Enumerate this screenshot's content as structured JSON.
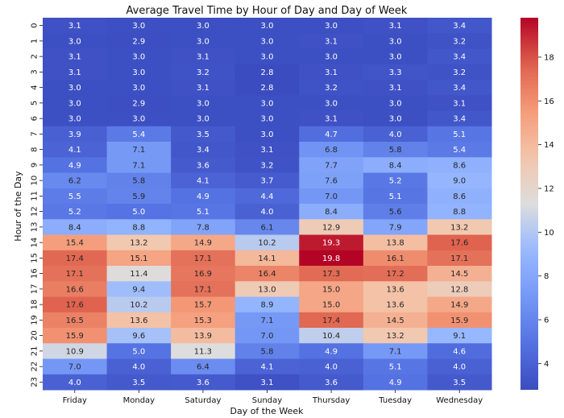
{
  "chart_data": {
    "type": "heatmap",
    "title": "Average Travel Time by Hour of Day and Day of Week",
    "xlabel": "Day of the Week",
    "ylabel": "Hour of the Day",
    "x_categories": [
      "Friday",
      "Monday",
      "Saturday",
      "Sunday",
      "Thursday",
      "Tuesday",
      "Wednesday"
    ],
    "y_categories": [
      "0",
      "1",
      "2",
      "3",
      "4",
      "5",
      "6",
      "7",
      "8",
      "9",
      "10",
      "11",
      "12",
      "13",
      "14",
      "15",
      "16",
      "17",
      "18",
      "19",
      "20",
      "21",
      "22",
      "23"
    ],
    "values": [
      [
        3.1,
        3.0,
        3.0,
        3.0,
        3.0,
        3.1,
        3.4
      ],
      [
        3.0,
        2.9,
        3.0,
        3.0,
        3.1,
        3.0,
        3.2
      ],
      [
        3.1,
        3.0,
        3.1,
        3.0,
        3.0,
        3.0,
        3.4
      ],
      [
        3.1,
        3.0,
        3.2,
        2.8,
        3.1,
        3.3,
        3.2
      ],
      [
        3.0,
        3.0,
        3.1,
        2.8,
        3.2,
        3.1,
        3.4
      ],
      [
        3.0,
        2.9,
        3.0,
        3.0,
        3.0,
        3.0,
        3.1
      ],
      [
        3.0,
        3.0,
        3.0,
        3.0,
        3.1,
        3.0,
        3.4
      ],
      [
        3.9,
        5.4,
        3.5,
        3.0,
        4.7,
        4.0,
        5.1
      ],
      [
        4.1,
        7.1,
        3.4,
        3.1,
        6.8,
        5.8,
        5.4
      ],
      [
        4.9,
        7.1,
        3.6,
        3.2,
        7.7,
        8.4,
        8.6
      ],
      [
        6.2,
        5.8,
        4.1,
        3.7,
        7.6,
        5.2,
        9.0
      ],
      [
        5.5,
        5.9,
        4.9,
        4.4,
        7.0,
        5.1,
        8.6
      ],
      [
        5.2,
        5.0,
        5.1,
        4.0,
        8.4,
        5.6,
        8.8
      ],
      [
        8.4,
        8.8,
        7.8,
        6.1,
        12.9,
        7.9,
        13.2
      ],
      [
        15.4,
        13.2,
        14.9,
        10.2,
        19.3,
        13.8,
        17.6
      ],
      [
        17.4,
        15.1,
        17.1,
        14.1,
        19.8,
        16.1,
        17.1
      ],
      [
        17.1,
        11.4,
        16.9,
        16.4,
        17.3,
        17.2,
        14.5
      ],
      [
        16.6,
        9.4,
        17.1,
        13.0,
        15.0,
        13.6,
        12.8
      ],
      [
        17.6,
        10.2,
        15.7,
        8.9,
        15.0,
        13.6,
        14.9
      ],
      [
        16.5,
        13.6,
        15.3,
        7.1,
        17.4,
        14.5,
        15.9
      ],
      [
        15.9,
        9.6,
        13.9,
        7.0,
        10.4,
        13.2,
        9.1
      ],
      [
        10.9,
        5.0,
        11.3,
        5.8,
        4.9,
        7.1,
        4.6
      ],
      [
        7.0,
        4.0,
        6.4,
        4.1,
        4.0,
        5.1,
        4.0
      ],
      [
        4.0,
        3.5,
        3.6,
        3.1,
        3.6,
        4.9,
        3.5
      ]
    ],
    "colormap": "coolwarm",
    "vmin": 2.8,
    "vmax": 19.8,
    "colorbar_ticks": [
      4,
      6,
      8,
      10,
      12,
      14,
      16,
      18
    ],
    "annotated": true
  }
}
